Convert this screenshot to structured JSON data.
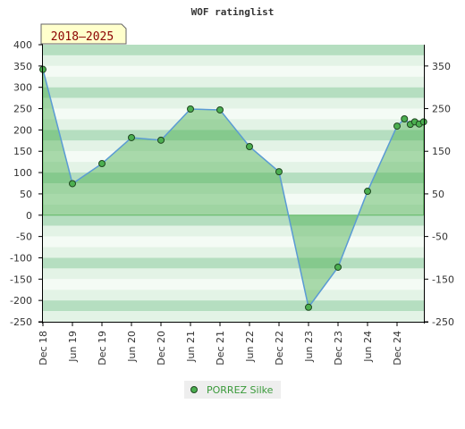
{
  "chart_data": {
    "type": "area",
    "title": "WOF ratinglist",
    "period_badge": "2018–2025",
    "xlabel": "",
    "ylabel": "",
    "ylim": [
      -250,
      400
    ],
    "y_ticks_left": [
      400,
      350,
      300,
      250,
      200,
      150,
      100,
      50,
      0,
      -50,
      -100,
      -150,
      -200,
      -250
    ],
    "y_ticks_right": [
      350,
      250,
      150,
      50,
      -50,
      -150,
      -250
    ],
    "x_tick_labels": [
      "Dec 18",
      "Jun 19",
      "Dec 19",
      "Jun 20",
      "Dec 20",
      "Jun 21",
      "Dec 21",
      "Jun 22",
      "Dec 22",
      "Jun 23",
      "Dec 23",
      "Jun 24",
      "Dec 24"
    ],
    "grid": true,
    "legend_position": "bottom-center",
    "colors": {
      "line": "#5b9bd5",
      "area": "#4caf50",
      "marker_fill": "#4caf50",
      "marker_stroke": "#1e4620",
      "band_dark": "#b5dec0",
      "band_light": "#e3f3e6",
      "band_lightest": "#f4fbf5",
      "badge_bg": "#ffffcc",
      "badge_border": "#666666",
      "badge_text": "#8b0000",
      "legend_text": "#3a9a3a"
    },
    "series": [
      {
        "name": "PORREZ Silke",
        "x": [
          0,
          1,
          2,
          3,
          4,
          5,
          6,
          7,
          8,
          9,
          10,
          11,
          12,
          12.25,
          12.45,
          12.6,
          12.75,
          12.9
        ],
        "values": [
          342,
          74,
          121,
          182,
          176,
          249,
          247,
          161,
          102,
          -216,
          -122,
          56,
          209,
          226,
          213,
          219,
          214,
          219
        ]
      }
    ]
  }
}
